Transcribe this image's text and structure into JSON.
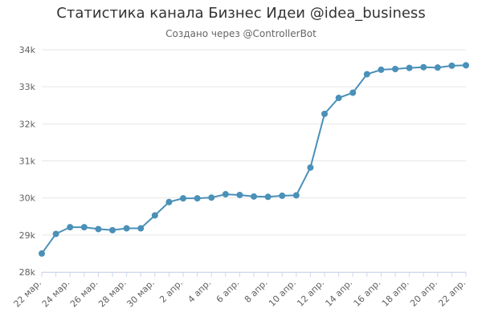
{
  "chart_data": {
    "type": "line",
    "title": "Статистика канала Бизнес Идеи @idea_business",
    "subtitle": "Создано через @ControllerBot",
    "categories": [
      "22 мар.",
      "23 мар.",
      "24 мар.",
      "25 мар.",
      "26 мар.",
      "27 мар.",
      "28 мар.",
      "29 мар.",
      "30 мар.",
      "31 мар.",
      "2 апр.",
      "3 апр.",
      "4 апр.",
      "5 апр.",
      "6 апр.",
      "7 апр.",
      "8 апр.",
      "9 апр.",
      "10 апр.",
      "11 апр.",
      "12 апр.",
      "13 апр.",
      "14 апр.",
      "15 апр.",
      "16 апр.",
      "17 апр.",
      "18 апр.",
      "19 апр.",
      "20 апр.",
      "21 апр.",
      "22 апр."
    ],
    "xtick_labels": [
      "22 мар.",
      "24 мар.",
      "26 мар.",
      "28 мар.",
      "30 мар.",
      "2 апр.",
      "4 апр.",
      "6 апр.",
      "8 апр.",
      "10 апр.",
      "12 апр.",
      "14 апр.",
      "16 апр.",
      "18 апр.",
      "20 апр.",
      "22 апр."
    ],
    "values": [
      28500,
      29030,
      29210,
      29210,
      29160,
      29130,
      29180,
      29180,
      29530,
      29890,
      29990,
      29990,
      30010,
      30100,
      30080,
      30040,
      30030,
      30060,
      30070,
      30820,
      32270,
      32700,
      32840,
      33340,
      33460,
      33480,
      33510,
      33530,
      33520,
      33570,
      33580
    ],
    "ylim": [
      28000,
      34000
    ],
    "yticks": [
      28000,
      29000,
      30000,
      31000,
      32000,
      33000,
      34000
    ],
    "ytick_labels": [
      "28k",
      "29k",
      "30k",
      "31k",
      "32k",
      "33k",
      "34k"
    ],
    "grid": true,
    "legend": "none",
    "color": "#4a90b8",
    "xlabel": "",
    "ylabel": ""
  }
}
